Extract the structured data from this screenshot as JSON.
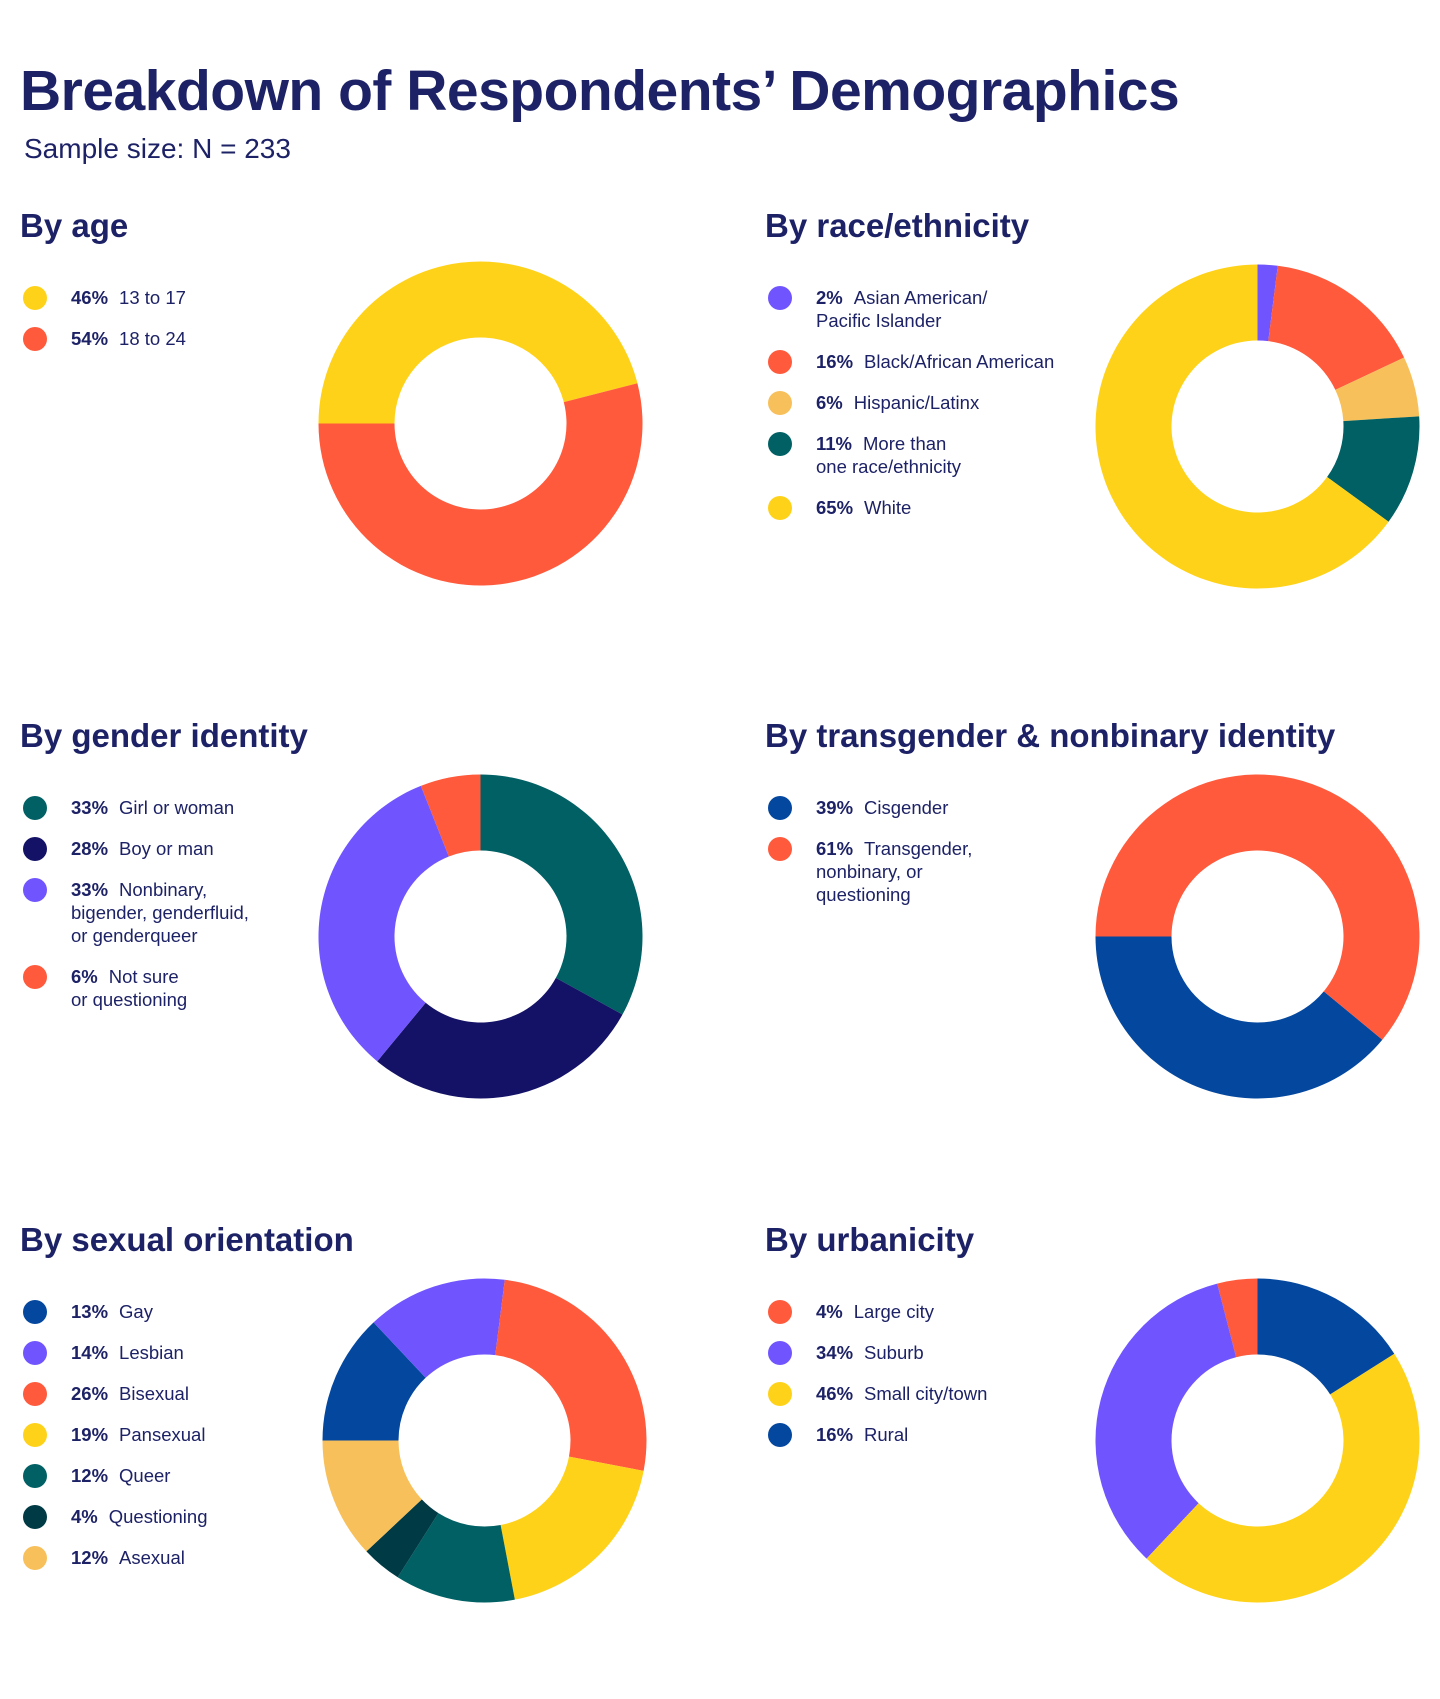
{
  "header": {
    "title": "Breakdown of Respondents’ Demographics",
    "subtitle": "Sample size: N = 233"
  },
  "colors": {
    "yellow": "#ffd21a",
    "red": "#ff5a3c",
    "purple": "#7055ff",
    "light_orange": "#f8c05a",
    "teal": "#006064",
    "navy": "#141266",
    "blue": "#04479e",
    "dark_teal": "#003a45",
    "text": "#1d2266"
  },
  "chart_data": [
    {
      "id": "age",
      "type": "pie",
      "title": "By age",
      "start_angle": 180,
      "direction": "clockwise",
      "slices": [
        {
          "label": "13 to 17",
          "pct": "46%",
          "value": 46,
          "color": "#ffd21a"
        },
        {
          "label": "18 to 24",
          "pct": "54%",
          "value": 54,
          "color": "#ff5a3c"
        }
      ]
    },
    {
      "id": "race",
      "type": "pie",
      "title": "By race/ethnicity",
      "start_angle": 270,
      "direction": "clockwise",
      "slices": [
        {
          "label": "Asian American/\nPacific Islander",
          "pct": "2%",
          "value": 2,
          "color": "#7055ff"
        },
        {
          "label": "Black/African American",
          "pct": "16%",
          "value": 16,
          "color": "#ff5a3c"
        },
        {
          "label": "Hispanic/Latinx",
          "pct": "6%",
          "value": 6,
          "color": "#f8c05a"
        },
        {
          "label": "More than\none race/ethnicity",
          "pct": "11%",
          "value": 11,
          "color": "#006064"
        },
        {
          "label": "White",
          "pct": "65%",
          "value": 65,
          "color": "#ffd21a"
        }
      ]
    },
    {
      "id": "gender",
      "type": "pie",
      "title": "By gender identity",
      "start_angle": 270,
      "direction": "clockwise",
      "slices": [
        {
          "label": "Girl or woman",
          "pct": "33%",
          "value": 33,
          "color": "#006064"
        },
        {
          "label": "Boy or man",
          "pct": "28%",
          "value": 28,
          "color": "#141266"
        },
        {
          "label": "Nonbinary,\nbigender, genderfluid,\nor genderqueer",
          "pct": "33%",
          "value": 33,
          "color": "#7055ff"
        },
        {
          "label": "Not sure\nor questioning",
          "pct": "6%",
          "value": 6,
          "color": "#ff5a3c"
        }
      ]
    },
    {
      "id": "trans",
      "type": "pie",
      "title": "By transgender & nonbinary identity",
      "start_angle": 180,
      "direction": "counterclockwise",
      "slices": [
        {
          "label": "Cisgender",
          "pct": "39%",
          "value": 39,
          "color": "#04479e"
        },
        {
          "label": "Transgender,\nnonbinary, or\nquestioning",
          "pct": "61%",
          "value": 61,
          "color": "#ff5a3c"
        }
      ]
    },
    {
      "id": "orientation",
      "type": "pie",
      "title": "By sexual orientation",
      "start_angle": 180,
      "direction": "clockwise",
      "slices": [
        {
          "label": "Gay",
          "pct": "13%",
          "value": 13,
          "color": "#04479e"
        },
        {
          "label": "Lesbian",
          "pct": "14%",
          "value": 14,
          "color": "#7055ff"
        },
        {
          "label": "Bisexual",
          "pct": "26%",
          "value": 26,
          "color": "#ff5a3c"
        },
        {
          "label": "Pansexual",
          "pct": "19%",
          "value": 19,
          "color": "#ffd21a"
        },
        {
          "label": "Queer",
          "pct": "12%",
          "value": 12,
          "color": "#006064"
        },
        {
          "label": "Questioning",
          "pct": "4%",
          "value": 4,
          "color": "#003a45"
        },
        {
          "label": "Asexual",
          "pct": "12%",
          "value": 12,
          "color": "#f8c05a"
        }
      ]
    },
    {
      "id": "urbanicity",
      "type": "pie",
      "title": "By urbanicity",
      "start_angle": 270,
      "direction": "counterclockwise",
      "slices": [
        {
          "label": "Large city",
          "pct": "4%",
          "value": 4,
          "color": "#ff5a3c"
        },
        {
          "label": "Suburb",
          "pct": "34%",
          "value": 34,
          "color": "#7055ff"
        },
        {
          "label": "Small city/town",
          "pct": "46%",
          "value": 46,
          "color": "#ffd21a"
        },
        {
          "label": "Rural",
          "pct": "16%",
          "value": 16,
          "color": "#04479e"
        }
      ]
    }
  ]
}
